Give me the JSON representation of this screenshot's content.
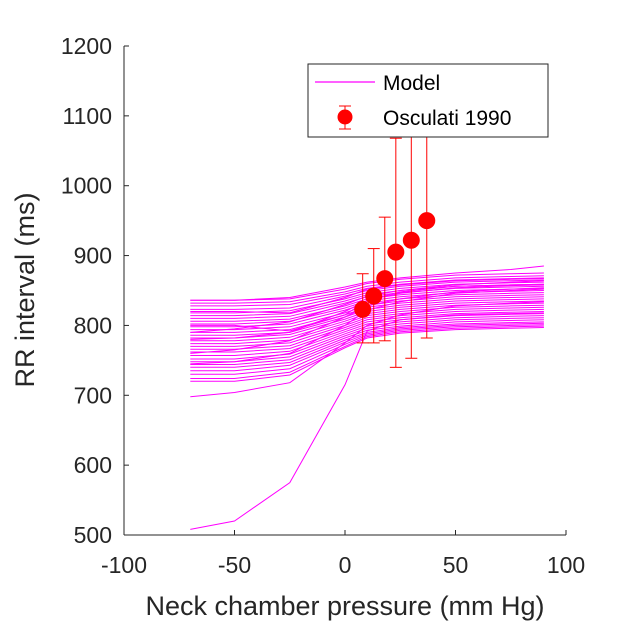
{
  "chart_data": {
    "type": "line",
    "title": "",
    "xlabel": "Neck chamber pressure (mm Hg)",
    "ylabel": "RR interval (ms)",
    "xlim": [
      -100,
      100
    ],
    "ylim": [
      500,
      1200
    ],
    "xticks": [
      -100,
      -50,
      0,
      50,
      100
    ],
    "yticks": [
      500,
      600,
      700,
      800,
      900,
      1000,
      1100,
      1200
    ],
    "grid": false,
    "legend_position": "top-right",
    "colors": {
      "model": "#ff00ff",
      "data": "#ff0000",
      "axis": "#262626"
    },
    "model_x": [
      -70,
      -50,
      -25,
      0,
      10,
      25,
      50,
      75,
      90
    ],
    "series": [
      {
        "name": "Model",
        "kind": "lines",
        "lines": [
          [
            836,
            836,
            838,
            852,
            860,
            866,
            872,
            874,
            875
          ],
          [
            832,
            832,
            834,
            848,
            856,
            862,
            868,
            870,
            871
          ],
          [
            828,
            828,
            830,
            845,
            853,
            859,
            865,
            867,
            868
          ],
          [
            823,
            823,
            825,
            842,
            850,
            856,
            862,
            864,
            865
          ],
          [
            818,
            818,
            821,
            838,
            847,
            853,
            859,
            861,
            862
          ],
          [
            814,
            814,
            817,
            835,
            844,
            850,
            856,
            858,
            859
          ],
          [
            810,
            810,
            813,
            832,
            841,
            847,
            853,
            855,
            856
          ],
          [
            806,
            806,
            809,
            828,
            838,
            844,
            850,
            852,
            853
          ],
          [
            802,
            802,
            806,
            825,
            835,
            841,
            847,
            849,
            850
          ],
          [
            798,
            798,
            802,
            822,
            832,
            838,
            844,
            846,
            847
          ],
          [
            794,
            794,
            798,
            818,
            829,
            835,
            841,
            843,
            844
          ],
          [
            790,
            790,
            794,
            815,
            826,
            832,
            838,
            840,
            841
          ],
          [
            786,
            786,
            790,
            812,
            823,
            829,
            835,
            837,
            838
          ],
          [
            782,
            782,
            787,
            809,
            820,
            826,
            832,
            834,
            835
          ],
          [
            778,
            778,
            783,
            806,
            817,
            823,
            829,
            831,
            832
          ],
          [
            774,
            774,
            779,
            803,
            814,
            820,
            826,
            828,
            829
          ],
          [
            770,
            770,
            775,
            800,
            811,
            817,
            823,
            825,
            826
          ],
          [
            766,
            766,
            771,
            797,
            808,
            814,
            820,
            822,
            823
          ],
          [
            762,
            762,
            767,
            794,
            805,
            811,
            817,
            819,
            820
          ],
          [
            757,
            757,
            763,
            791,
            802,
            808,
            814,
            816,
            817
          ],
          [
            752,
            752,
            759,
            788,
            799,
            805,
            811,
            813,
            814
          ],
          [
            748,
            748,
            755,
            785,
            796,
            802,
            808,
            810,
            811
          ],
          [
            744,
            744,
            751,
            782,
            793,
            799,
            805,
            807,
            808
          ],
          [
            740,
            740,
            747,
            779,
            790,
            797,
            802,
            804,
            805
          ],
          [
            735,
            735,
            743,
            776,
            788,
            795,
            800,
            802,
            803
          ],
          [
            730,
            730,
            738,
            773,
            786,
            793,
            798,
            800,
            801
          ],
          [
            724,
            724,
            733,
            770,
            784,
            791,
            796,
            798,
            799
          ],
          [
            720,
            720,
            729,
            768,
            782,
            789,
            794,
            796,
            797
          ],
          [
            836,
            836,
            840,
            855,
            862,
            868,
            875,
            880,
            885
          ],
          [
            790,
            795,
            805,
            830,
            842,
            850,
            858,
            862,
            864
          ],
          [
            760,
            765,
            778,
            812,
            828,
            838,
            848,
            852,
            854
          ],
          [
            800,
            800,
            792,
            815,
            836,
            848,
            856,
            858,
            859
          ],
          [
            820,
            820,
            818,
            840,
            852,
            858,
            864,
            866,
            867
          ],
          [
            745,
            748,
            760,
            800,
            822,
            834,
            846,
            850,
            852
          ],
          [
            780,
            782,
            790,
            820,
            836,
            846,
            854,
            857,
            858
          ],
          [
            698,
            704,
            718,
            775,
            800,
            815,
            828,
            832,
            834
          ],
          [
            508,
            520,
            575,
            715,
            792,
            808,
            815,
            817,
            818
          ]
        ]
      },
      {
        "name": "Osculati 1990",
        "kind": "points",
        "x": [
          8,
          13,
          18,
          23,
          30,
          37
        ],
        "y": [
          823,
          842,
          867,
          905,
          922,
          950
        ],
        "err_low": [
          775,
          775,
          778,
          740,
          753,
          782
        ],
        "err_high": [
          874,
          910,
          955,
          1068,
          1088,
          1118
        ]
      }
    ]
  }
}
